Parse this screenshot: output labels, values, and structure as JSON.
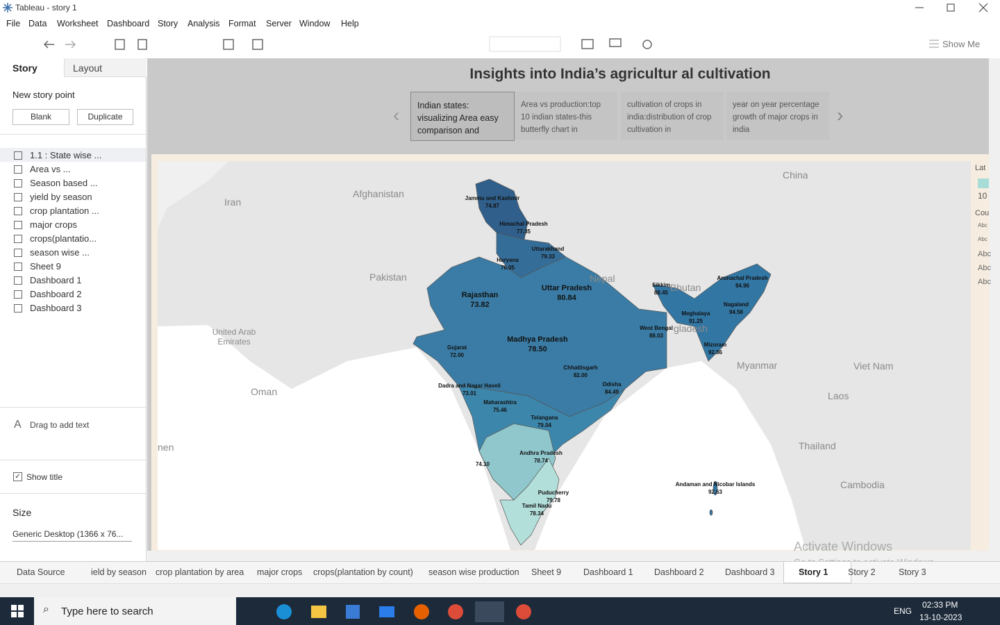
{
  "window": {
    "title": "Tableau - story 1"
  },
  "menu": [
    "File",
    "Data",
    "Worksheet",
    "Dashboard",
    "Story",
    "Analysis",
    "Format",
    "Server",
    "Window",
    "Help"
  ],
  "toolbar": {
    "show_me": "Show Me"
  },
  "sidebar": {
    "tabs": [
      "Story",
      "Layout"
    ],
    "new_story_point": "New story point",
    "buttons": [
      "Blank",
      "Duplicate"
    ],
    "sheets": [
      "1.1 : State wise ...",
      "Area vs ...",
      "Season based ...",
      "yield by season",
      "crop plantation ...",
      "major crops",
      "crops(plantatio...",
      "season wise ...",
      "Sheet 9",
      "Dashboard 1",
      "Dashboard 2",
      "Dashboard 3"
    ],
    "drag_text": "Drag to add text",
    "show_title": "Show title",
    "size_label": "Size",
    "size_value": "Generic Desktop (1366 x 76..."
  },
  "story": {
    "title": "Insights into India’s agricultur al cultivation",
    "points": [
      "Indian states: visualizing Area easy comparison and",
      "Area vs production:top 10 indian states-this butterfly chart in",
      "cultivation of crops in india:distribution of crop cultivation in",
      "year on year percentage growth of major crops in india"
    ]
  },
  "map": {
    "countries": [
      "China",
      "Iran",
      "Afghanistan",
      "Pakistan",
      "Nepal",
      "Bhutan",
      "United Arab Emirates",
      "Oman",
      "Myanmar",
      "Viet Nam",
      "Laos",
      "Thailand",
      "Cambodia",
      "nen",
      "gladesh"
    ],
    "states": [
      {
        "name": "Jammu and Kashmir",
        "value": "74.87"
      },
      {
        "name": "Himachal Pradesh",
        "value": "77.35"
      },
      {
        "name": "Uttarakhand",
        "value": "79.33"
      },
      {
        "name": "Haryana",
        "value": "76.05"
      },
      {
        "name": "Rajasthan",
        "value": "73.82"
      },
      {
        "name": "Uttar Pradesh",
        "value": "80.84"
      },
      {
        "name": "Sikkim",
        "value": "88.45"
      },
      {
        "name": "Arunachal Pradesh",
        "value": "94.96"
      },
      {
        "name": "Nagaland",
        "value": "94.58"
      },
      {
        "name": "Meghalaya",
        "value": "91.25"
      },
      {
        "name": "West Bengal",
        "value": "88.03"
      },
      {
        "name": "Mizoram",
        "value": "92.86"
      },
      {
        "name": "Gujarat",
        "value": "72.00"
      },
      {
        "name": "Madhya Pradesh",
        "value": "78.50"
      },
      {
        "name": "Chhattisgarh",
        "value": "82.00"
      },
      {
        "name": "Odisha",
        "value": "84.49"
      },
      {
        "name": "Dadra and Nagar Haveli",
        "value": "73.01"
      },
      {
        "name": "Maharashtra",
        "value": "75.46"
      },
      {
        "name": "Telangana",
        "value": "79.04"
      },
      {
        "value": "74.10"
      },
      {
        "name": "Andhra Pradesh",
        "value": "78.74"
      },
      {
        "name": "Puducherry",
        "value": "79.78"
      },
      {
        "name": "Tamil Nadu",
        "value": "78.34"
      },
      {
        "name": "Andaman and Nicobar Islands",
        "value": "92.63"
      }
    ]
  },
  "legend": {
    "title": "Lat",
    "value": "10",
    "title2": "Cou",
    "items": [
      "Abc",
      "Abc",
      "Abc",
      "Abc",
      "Abc"
    ]
  },
  "tabs": [
    "Data Source",
    "ield by season",
    "crop plantation by area",
    "major crops",
    "crops(plantation by count)",
    "season wise production",
    "Sheet 9",
    "Dashboard 1",
    "Dashboard 2",
    "Dashboard 3",
    "Story 1",
    "Story 2",
    "Story 3"
  ],
  "watermark": {
    "line1": "Activate Windows",
    "line2": "Go to Settings to activate Windows."
  },
  "taskbar": {
    "search": "Type here to search",
    "lang": "ENG",
    "time": "02:33 PM",
    "date": "13-10-2023"
  }
}
